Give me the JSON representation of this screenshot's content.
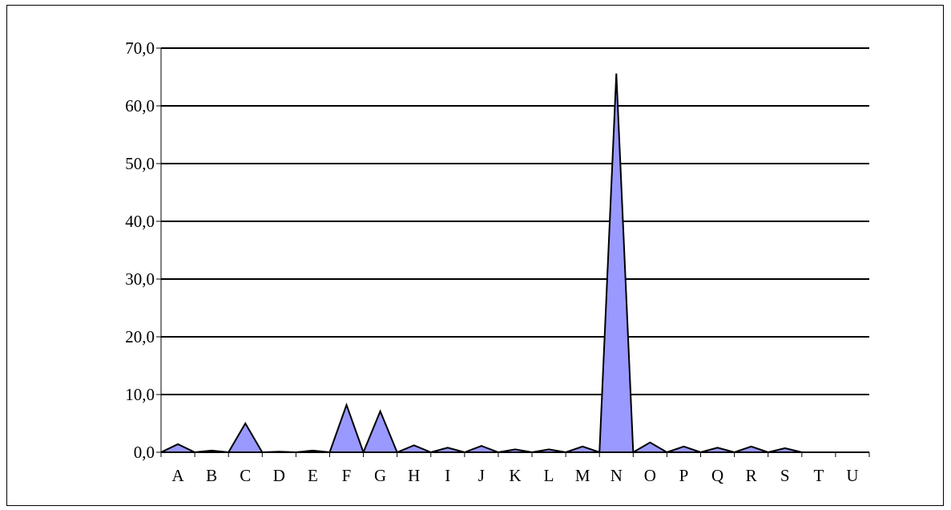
{
  "chart_data": {
    "type": "area",
    "title": "",
    "xlabel": "",
    "ylabel": "",
    "categories": [
      "A",
      "B",
      "C",
      "D",
      "E",
      "F",
      "G",
      "H",
      "I",
      "J",
      "K",
      "L",
      "M",
      "N",
      "O",
      "P",
      "Q",
      "R",
      "S",
      "T",
      "U"
    ],
    "values": [
      1.4,
      0.3,
      5.0,
      0.1,
      0.3,
      8.2,
      7.1,
      1.2,
      0.8,
      1.1,
      0.5,
      0.5,
      1.0,
      65.6,
      1.7,
      1.0,
      0.8,
      1.0,
      0.7,
      0.0,
      0.0
    ],
    "ylim": [
      0,
      70
    ],
    "yticks": [
      0,
      10,
      20,
      30,
      40,
      50,
      60,
      70
    ],
    "ytick_labels": [
      "0,0",
      "10,0",
      "20,0",
      "30,0",
      "40,0",
      "50,0",
      "60,0",
      "70,0"
    ],
    "grid": true,
    "legend": "none",
    "colors": {
      "fill": "#9999ff",
      "stroke": "#000000",
      "grid": "#000000"
    }
  }
}
